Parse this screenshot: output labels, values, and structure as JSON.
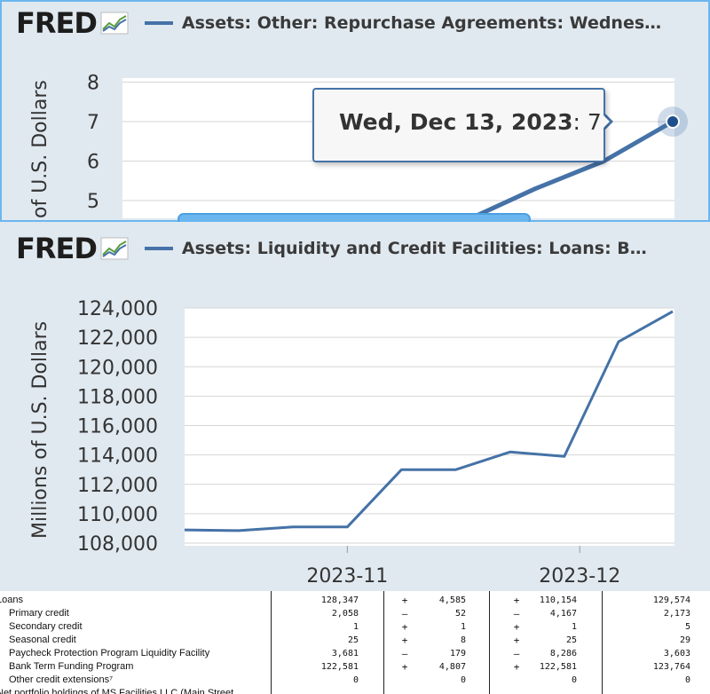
{
  "top_panel": {
    "logo": "FRED",
    "series_title": "Assets: Other: Repurchase Agreements: Wednes…",
    "tooltip": {
      "date": "Wed, Dec 13, 2023",
      "value": "7"
    }
  },
  "bottom_panel": {
    "logo": "FRED",
    "series_title": "Assets: Liquidity and Credit Facilities: Loans: B…"
  },
  "colors": {
    "line": "#4572a7",
    "panel_bg": "#e1e9f0",
    "frame": "#6bb6ef",
    "grid": "#d6d6d6"
  },
  "chart_data": [
    {
      "type": "line",
      "title": "Assets: Other: Repurchase Agreements: Wednes…",
      "ylabel": "of U.S. Dollars",
      "ylim": [
        4.5,
        8.3
      ],
      "yticks": [
        5,
        6,
        7,
        8
      ],
      "y_tick_labels": [
        "5",
        "6",
        "7",
        "8"
      ],
      "series": [
        {
          "name": "Assets: Other: Repurchase Agreements: Wednes…",
          "x": [
            "2023-11-22",
            "2023-11-29",
            "2023-12-06",
            "2023-12-13"
          ],
          "values": [
            4.5,
            5.3,
            6.0,
            7
          ]
        }
      ],
      "highlight": {
        "x": "2023-12-13",
        "value": 7
      },
      "grid": true
    },
    {
      "type": "line",
      "title": "Assets: Liquidity and Credit Facilities: Loans: B…",
      "ylabel": "Millions of U.S. Dollars",
      "ylim": [
        107500,
        124300
      ],
      "yticks": [
        108000,
        110000,
        112000,
        114000,
        116000,
        118000,
        120000,
        122000,
        124000
      ],
      "y_tick_labels": [
        "108,000",
        "110,000",
        "112,000",
        "114,000",
        "116,000",
        "118,000",
        "120,000",
        "122,000",
        "124,000"
      ],
      "x_tick_labels": [
        "2023-11",
        "2023-12"
      ],
      "series": [
        {
          "name": "Assets: Liquidity and Credit Facilities: Loans: B…",
          "x": [
            "2023-10-11",
            "2023-10-18",
            "2023-10-25",
            "2023-11-01",
            "2023-11-08",
            "2023-11-15",
            "2023-11-22",
            "2023-11-29",
            "2023-12-06",
            "2023-12-13"
          ],
          "values": [
            108900,
            108850,
            109100,
            109100,
            113000,
            113000,
            114200,
            113900,
            121700,
            123764
          ]
        }
      ],
      "grid": true
    }
  ],
  "table": {
    "rows": [
      {
        "label": "Loans",
        "v1": "128,347",
        "s2": "+",
        "v2": "4,585",
        "s3": "+",
        "v3": "110,154",
        "v4": "129,574"
      },
      {
        "label": "Primary credit",
        "v1": "2,058",
        "s2": "–",
        "v2": "52",
        "s3": "–",
        "v3": "4,167",
        "v4": "2,173"
      },
      {
        "label": "Secondary credit",
        "v1": "1",
        "s2": "+",
        "v2": "1",
        "s3": "+",
        "v3": "1",
        "v4": "5"
      },
      {
        "label": "Seasonal credit",
        "v1": "25",
        "s2": "+",
        "v2": "8",
        "s3": "+",
        "v3": "25",
        "v4": "29"
      },
      {
        "label": "Paycheck Protection Program Liquidity Facility",
        "v1": "3,681",
        "s2": "–",
        "v2": "179",
        "s3": "–",
        "v3": "8,286",
        "v4": "3,603"
      },
      {
        "label": "Bank Term Funding Program",
        "v1": "122,581",
        "s2": "+",
        "v2": "4,807",
        "s3": "+",
        "v3": "122,581",
        "v4": "123,764"
      },
      {
        "label": "Other credit extensions⁷",
        "v1": "0",
        "s2": "",
        "v2": "0",
        "s3": "",
        "v3": "0",
        "v4": "0"
      },
      {
        "label": "Net portfolio holdings of MS Facilities LLC (Main Street",
        "v1": "",
        "s2": "",
        "v2": "",
        "s3": "",
        "v3": "",
        "v4": ""
      }
    ]
  }
}
